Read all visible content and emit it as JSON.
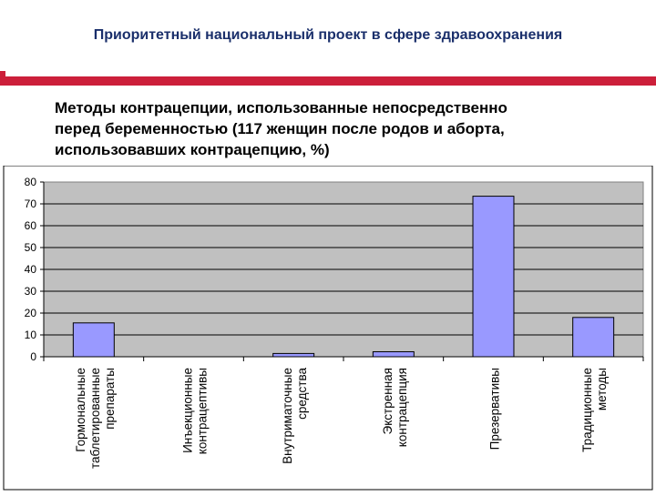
{
  "header": {
    "title": "Приоритетный национальный проект в сфере здравоохранения"
  },
  "slide": {
    "subtitle_lines": [
      "Методы контрацепции, использованные непосредственно",
      "перед беременностью (117 женщин после родов и аборта,",
      "использовавших контрацепцию, %)"
    ]
  },
  "colors": {
    "bar_fill": "#9999ff",
    "plot_background": "#c0c0c0",
    "accent_band": "#cc1f3a",
    "header_text": "#1a2f6b"
  },
  "chart_data": {
    "type": "bar",
    "title": "",
    "xlabel": "",
    "ylabel": "",
    "ylim": [
      0,
      80
    ],
    "yticks": [
      0,
      10,
      20,
      30,
      40,
      50,
      60,
      70,
      80
    ],
    "grid": true,
    "categories": [
      [
        "Гормональные",
        "таблетированные",
        "препараты"
      ],
      [
        "Инъекционные",
        "контрацептивы"
      ],
      [
        "Внутриматочные",
        "средства"
      ],
      [
        "Экстренная",
        "контрацепция"
      ],
      [
        "Презервативы"
      ],
      [
        "Традиционные",
        "методы"
      ]
    ],
    "values": [
      15.5,
      0,
      1.5,
      2.3,
      73.5,
      18
    ]
  }
}
